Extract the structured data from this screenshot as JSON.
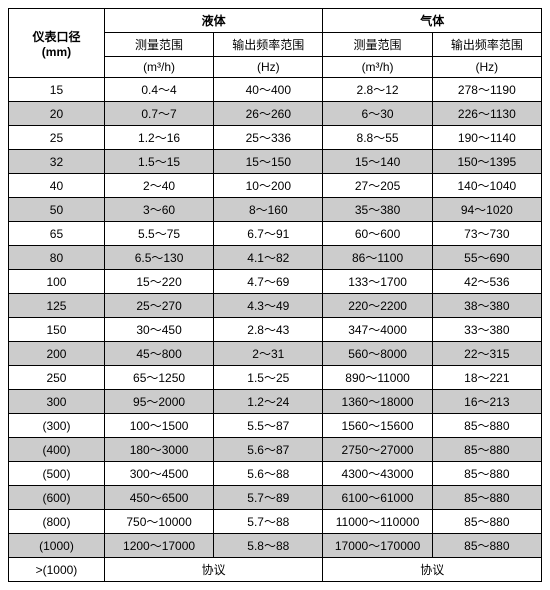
{
  "table": {
    "header": {
      "corner_line1": "仪表口径",
      "corner_line2": "(mm)",
      "group_liquid": "液体",
      "group_gas": "气体",
      "col_range_label": "测量范围",
      "col_range_unit": "(m³/h)",
      "col_freq_label": "输出频率范围",
      "col_freq_unit": "(Hz)"
    },
    "colors": {
      "light_bg": "#ffffff",
      "dark_bg": "#cccccc",
      "border": "#000000",
      "text": "#000000"
    },
    "rows": [
      {
        "dia": "15",
        "liq_range": "0.4～4",
        "liq_freq": "40～400",
        "gas_range": "2.8～12",
        "gas_freq": "278～1190",
        "shade": "light"
      },
      {
        "dia": "20",
        "liq_range": "0.7～7",
        "liq_freq": "26～260",
        "gas_range": "6～30",
        "gas_freq": "226～1130",
        "shade": "dark"
      },
      {
        "dia": "25",
        "liq_range": "1.2～16",
        "liq_freq": "25～336",
        "gas_range": "8.8～55",
        "gas_freq": "190～1140",
        "shade": "light"
      },
      {
        "dia": "32",
        "liq_range": "1.5～15",
        "liq_freq": "15～150",
        "gas_range": "15～140",
        "gas_freq": "150～1395",
        "shade": "dark"
      },
      {
        "dia": "40",
        "liq_range": "2～40",
        "liq_freq": "10～200",
        "gas_range": "27～205",
        "gas_freq": "140～1040",
        "shade": "light"
      },
      {
        "dia": "50",
        "liq_range": "3～60",
        "liq_freq": "8～160",
        "gas_range": "35～380",
        "gas_freq": "94～1020",
        "shade": "dark"
      },
      {
        "dia": "65",
        "liq_range": "5.5～75",
        "liq_freq": "6.7～91",
        "gas_range": "60～600",
        "gas_freq": "73～730",
        "shade": "light"
      },
      {
        "dia": "80",
        "liq_range": "6.5～130",
        "liq_freq": "4.1～82",
        "gas_range": "86～1100",
        "gas_freq": "55～690",
        "shade": "dark"
      },
      {
        "dia": "100",
        "liq_range": "15～220",
        "liq_freq": "4.7～69",
        "gas_range": "133～1700",
        "gas_freq": "42～536",
        "shade": "light"
      },
      {
        "dia": "125",
        "liq_range": "25～270",
        "liq_freq": "4.3～49",
        "gas_range": "220～2200",
        "gas_freq": "38～380",
        "shade": "dark"
      },
      {
        "dia": "150",
        "liq_range": "30～450",
        "liq_freq": "2.8～43",
        "gas_range": "347～4000",
        "gas_freq": "33～380",
        "shade": "light"
      },
      {
        "dia": "200",
        "liq_range": "45～800",
        "liq_freq": "2～31",
        "gas_range": "560～8000",
        "gas_freq": "22～315",
        "shade": "dark"
      },
      {
        "dia": "250",
        "liq_range": "65～1250",
        "liq_freq": "1.5～25",
        "gas_range": "890～11000",
        "gas_freq": "18～221",
        "shade": "light"
      },
      {
        "dia": "300",
        "liq_range": "95～2000",
        "liq_freq": "1.2～24",
        "gas_range": "1360～18000",
        "gas_freq": "16～213",
        "shade": "dark"
      },
      {
        "dia": "(300)",
        "liq_range": "100～1500",
        "liq_freq": "5.5～87",
        "gas_range": "1560～15600",
        "gas_freq": "85～880",
        "shade": "light"
      },
      {
        "dia": "(400)",
        "liq_range": "180～3000",
        "liq_freq": "5.6～87",
        "gas_range": "2750～27000",
        "gas_freq": "85～880",
        "shade": "dark"
      },
      {
        "dia": "(500)",
        "liq_range": "300～4500",
        "liq_freq": "5.6～88",
        "gas_range": "4300～43000",
        "gas_freq": "85～880",
        "shade": "light"
      },
      {
        "dia": "(600)",
        "liq_range": "450～6500",
        "liq_freq": "5.7～89",
        "gas_range": "6100～61000",
        "gas_freq": "85～880",
        "shade": "dark"
      },
      {
        "dia": "(800)",
        "liq_range": "750～10000",
        "liq_freq": "5.7～88",
        "gas_range": "11000～110000",
        "gas_freq": "85～880",
        "shade": "light"
      },
      {
        "dia": "(1000)",
        "liq_range": "1200～17000",
        "liq_freq": "5.8～88",
        "gas_range": "17000～170000",
        "gas_freq": "85～880",
        "shade": "dark"
      }
    ],
    "footer": {
      "dia": ">(1000)",
      "liquid_text": "协议",
      "gas_text": "协议"
    }
  }
}
